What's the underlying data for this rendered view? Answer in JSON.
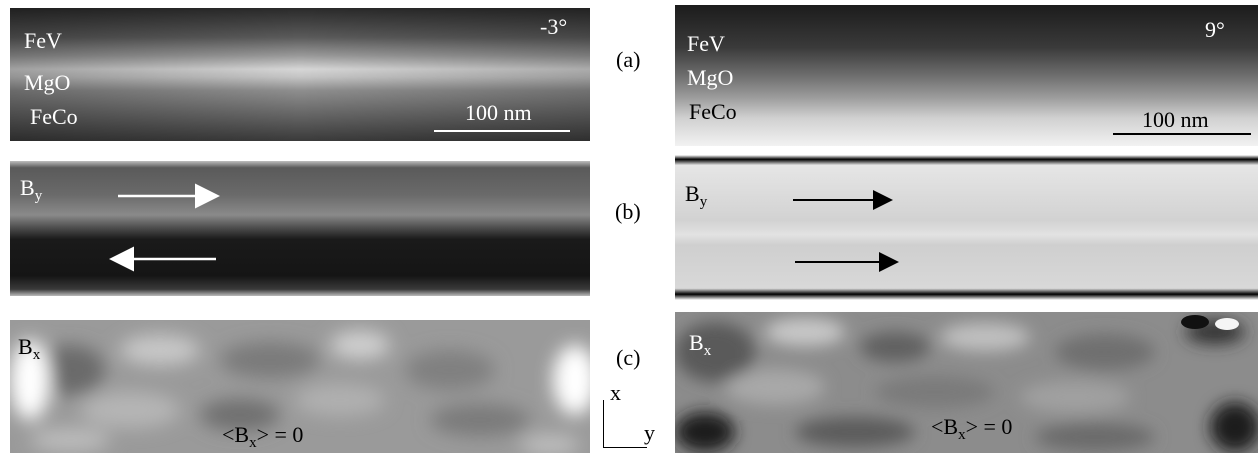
{
  "figure": {
    "left": {
      "angle": "-3°",
      "layers": [
        "FeV",
        "MgO",
        "FeCo"
      ],
      "scale_bar": "100 nm",
      "by_label": "B",
      "by_sub": "y",
      "bx_label": "B",
      "bx_sub": "x",
      "bx_avg_prefix": "<B",
      "bx_avg_sub": "x",
      "bx_avg_suffix": "> = 0"
    },
    "right": {
      "angle": "9°",
      "layers": [
        "FeV",
        "MgO",
        "FeCo"
      ],
      "scale_bar": "100 nm",
      "by_label": "B",
      "by_sub": "y",
      "bx_label": "B",
      "bx_sub": "x",
      "bx_avg_prefix": "<B",
      "bx_avg_sub": "x",
      "bx_avg_suffix": "> = 0"
    },
    "row_labels": [
      "(a)",
      "(b)",
      "(c)"
    ],
    "axes": {
      "x": "x",
      "y": "y"
    }
  }
}
